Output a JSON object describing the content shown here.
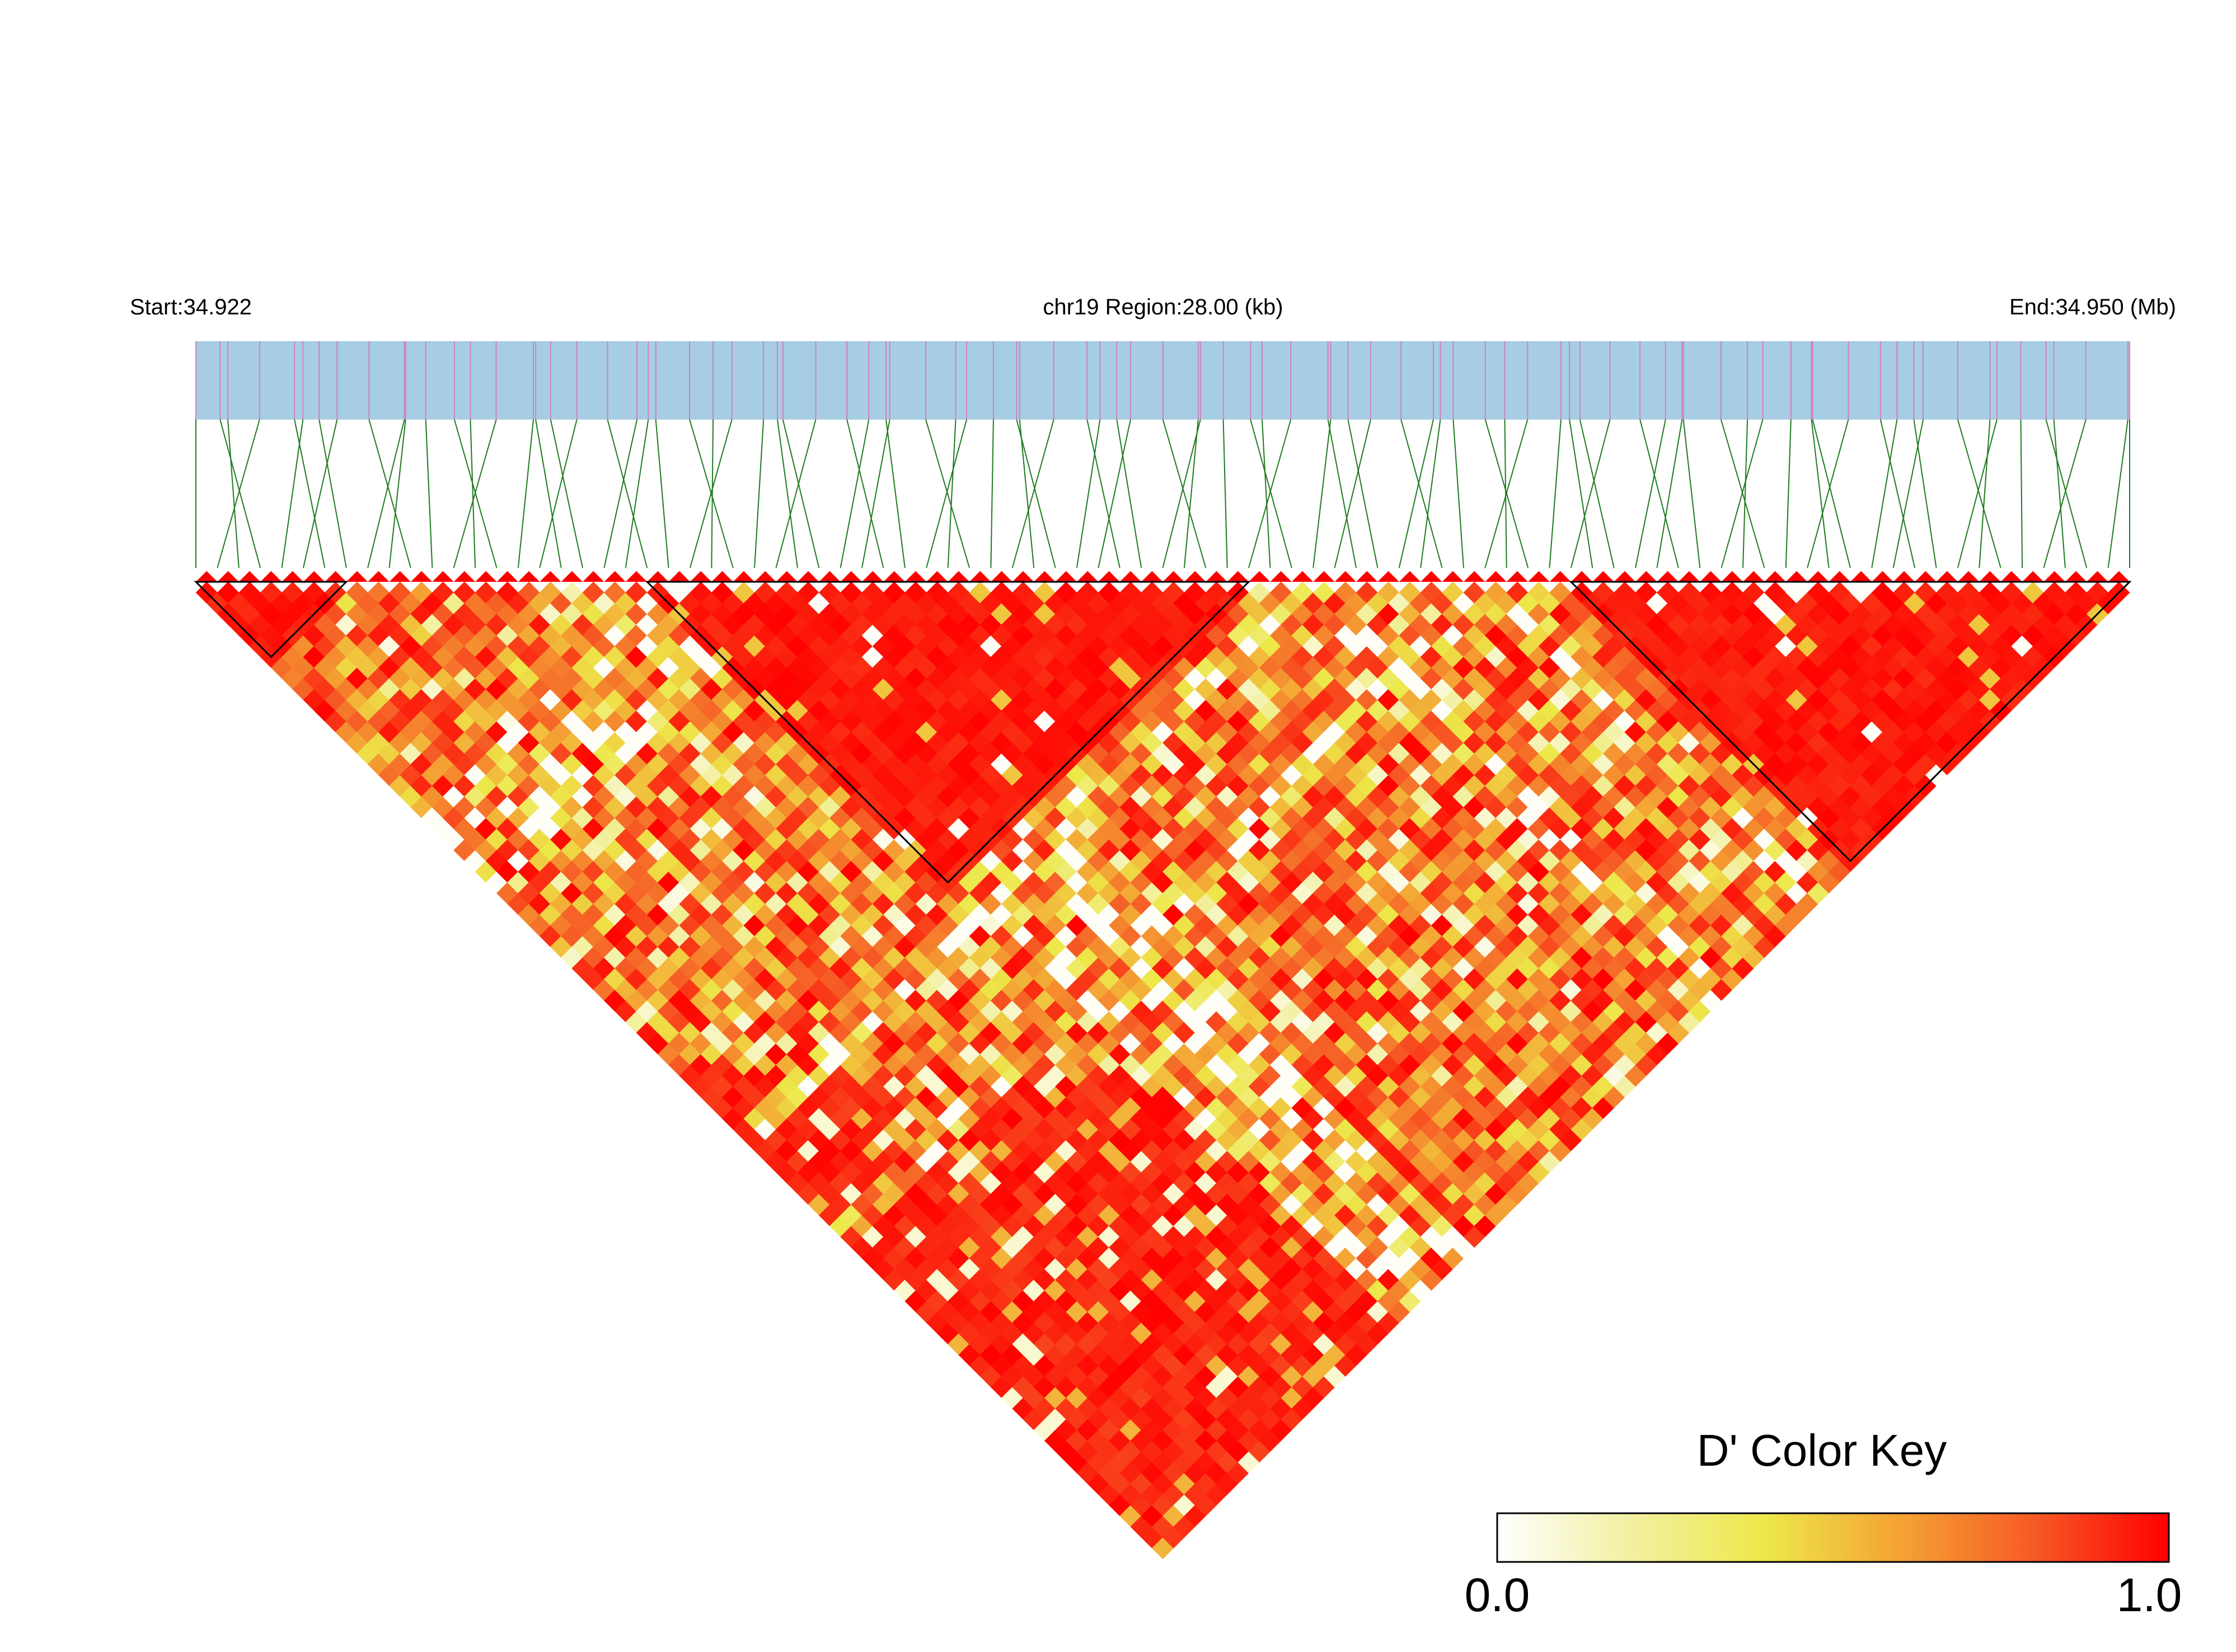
{
  "chart_data": {
    "type": "heatmap",
    "subtype": "linkage-disequilibrium-triangle",
    "chromosome": "chr19",
    "header": {
      "start_label": "Start:34.922",
      "region_label": "chr19 Region:28.00 (kb)",
      "end_label": "End:34.950 (Mb)"
    },
    "region_start_mb": 34.922,
    "region_end_mb": 34.95,
    "region_length_kb": 28.0,
    "snp_count": 91,
    "snp_positions_mb": [
      34.922,
      34.9223,
      34.92261,
      34.92291,
      34.92322,
      34.92352,
      34.92383,
      34.92413,
      34.92444,
      34.92474,
      34.92505,
      34.92536,
      34.92566,
      34.92597,
      34.92627,
      34.92658,
      34.92688,
      34.92719,
      34.92749,
      34.9278,
      34.92811,
      34.92841,
      34.92872,
      34.92902,
      34.92933,
      34.92963,
      34.92994,
      34.93024,
      34.93055,
      34.93085,
      34.93116,
      34.93147,
      34.93177,
      34.93208,
      34.93238,
      34.93269,
      34.93299,
      34.9333,
      34.9336,
      34.93391,
      34.93422,
      34.93452,
      34.93483,
      34.93513,
      34.93544,
      34.93574,
      34.93605,
      34.93635,
      34.93666,
      34.93696,
      34.93727,
      34.93758,
      34.93788,
      34.93819,
      34.93849,
      34.9388,
      34.9391,
      34.93941,
      34.93971,
      34.94002,
      34.94033,
      34.94063,
      34.94094,
      34.94124,
      34.94155,
      34.94185,
      34.94216,
      34.94246,
      34.94277,
      34.94307,
      34.94338,
      34.94369,
      34.94399,
      34.9443,
      34.9446,
      34.94491,
      34.94521,
      34.94552,
      34.94582,
      34.94613,
      34.94644,
      34.94674,
      34.94705,
      34.94735,
      34.94766,
      34.94796,
      34.94827,
      34.94857,
      34.94888,
      34.94918,
      34.9495
    ],
    "ld_blocks": [
      {
        "first_snp": 1,
        "last_snp": 8
      },
      {
        "first_snp": 22,
        "last_snp": 50
      },
      {
        "first_snp": 65,
        "last_snp": 91
      }
    ],
    "value_metric": "D'",
    "color_key": {
      "title": "D' Color Key",
      "min_label": "0.0",
      "max_label": "1.0",
      "min": 0.0,
      "max": 1.0,
      "stops": [
        "#ffffff",
        "#f2f0a0",
        "#ede84a",
        "#f4a334",
        "#f65a25",
        "#ff0000"
      ]
    },
    "colors": {
      "gene_track": "#a6cde2",
      "snp_tick": "#d47fbf",
      "connector": "#1f7a1f",
      "ld_high": "#ff0000",
      "ld_mid": "#f5a030",
      "ld_low": "#eee852",
      "ld_none": "#ffffff"
    }
  }
}
